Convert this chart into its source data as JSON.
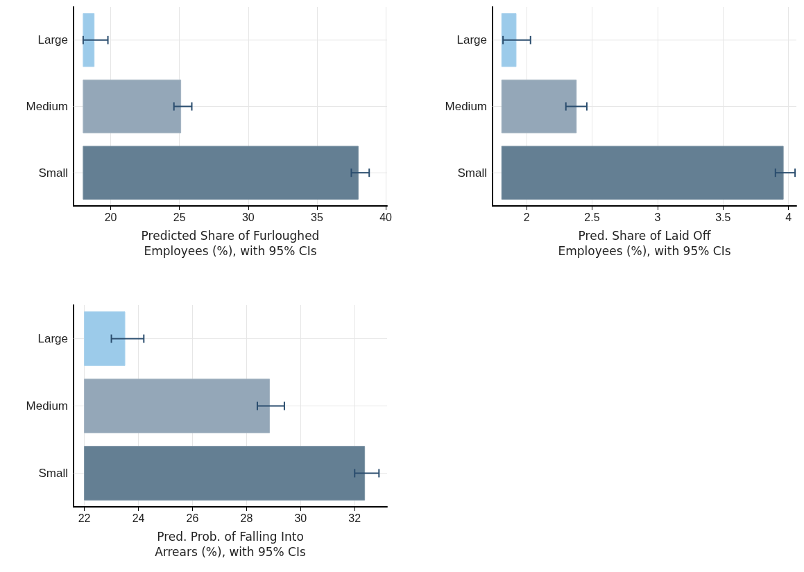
{
  "chart_data": [
    {
      "type": "bar",
      "orientation": "horizontal",
      "categories": [
        "Large",
        "Medium",
        "Small"
      ],
      "base": [
        18,
        18,
        18
      ],
      "values": [
        0.8,
        7.1,
        20.0
      ],
      "errors": [
        [
          18.0,
          19.8
        ],
        [
          24.6,
          25.9
        ],
        [
          37.5,
          38.8
        ]
      ],
      "colors": [
        "#9ccbea",
        "#94a7b8",
        "#647f93"
      ],
      "xlim": [
        17.3,
        40.1
      ],
      "xticks": [
        20,
        25,
        30,
        35,
        40
      ],
      "xlabel": "Predicted Share of Furloughed\nEmployees (%), with 95% CIs",
      "grid": true
    },
    {
      "type": "bar",
      "orientation": "horizontal",
      "categories": [
        "Large",
        "Medium",
        "Small"
      ],
      "base": [
        1.81,
        1.81,
        1.81
      ],
      "values": [
        0.11,
        0.57,
        2.15
      ],
      "errors": [
        [
          1.82,
          2.03
        ],
        [
          2.3,
          2.46
        ],
        [
          3.9,
          4.05
        ]
      ],
      "colors": [
        "#9ccbea",
        "#94a7b8",
        "#647f93"
      ],
      "xlim": [
        1.74,
        4.06
      ],
      "xticks": [
        2,
        2.5,
        3,
        3.5,
        4
      ],
      "xlabel": "Pred. Share of Laid Off\nEmployees (%), with 95% CIs",
      "grid": true
    },
    {
      "type": "bar",
      "orientation": "horizontal",
      "categories": [
        "Large",
        "Medium",
        "Small"
      ],
      "base": [
        22,
        22,
        22
      ],
      "values": [
        1.5,
        6.85,
        10.37
      ],
      "errors": [
        [
          23.0,
          24.2
        ],
        [
          28.4,
          29.4
        ],
        [
          32.0,
          32.9
        ]
      ],
      "colors": [
        "#9ccbea",
        "#94a7b8",
        "#647f93"
      ],
      "xlim": [
        21.6,
        33.2
      ],
      "xticks": [
        22,
        24,
        26,
        28,
        30,
        32
      ],
      "xlabel": "Pred. Prob. of Falling Into\nArrears (%), with 95% CIs",
      "grid": true
    }
  ]
}
